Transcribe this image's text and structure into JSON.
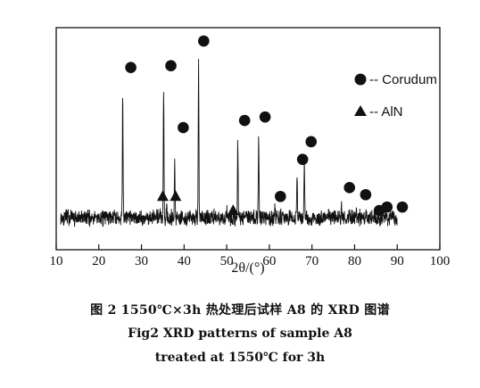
{
  "chart_data": {
    "type": "line",
    "title": "",
    "xlabel": "2θ/(°)",
    "ylabel": "",
    "xlim": [
      10,
      100
    ],
    "x_ticks": [
      10,
      20,
      30,
      40,
      50,
      60,
      70,
      80,
      90,
      100
    ],
    "y_ticks_visible": false,
    "grid": false,
    "legend_position": "right-upper",
    "legend": [
      {
        "name": "Corudum",
        "marker": "circle"
      },
      {
        "name": "AlN",
        "marker": "triangle"
      }
    ],
    "baseline_range": [
      11,
      90
    ],
    "peaks": [
      {
        "x": 25.6,
        "intensity": 0.72,
        "phase": "Corudum"
      },
      {
        "x": 35.2,
        "intensity": 0.73,
        "phase": "Corudum"
      },
      {
        "x": 37.8,
        "intensity": 0.35,
        "phase": "Corudum"
      },
      {
        "x": 43.4,
        "intensity": 0.89,
        "phase": "Corudum"
      },
      {
        "x": 52.6,
        "intensity": 0.42,
        "phase": "Corudum"
      },
      {
        "x": 57.5,
        "intensity": 0.45,
        "phase": "Corudum"
      },
      {
        "x": 61.3,
        "intensity": 0.06,
        "phase": "Corudum"
      },
      {
        "x": 66.5,
        "intensity": 0.25,
        "phase": "Corudum"
      },
      {
        "x": 68.2,
        "intensity": 0.32,
        "phase": "Corudum"
      },
      {
        "x": 76.9,
        "intensity": 0.08,
        "phase": "Corudum"
      },
      {
        "x": 80.4,
        "intensity": 0.05,
        "phase": "Corudum"
      },
      {
        "x": 35.9,
        "intensity": 0.09,
        "phase": "AlN"
      },
      {
        "x": 50.1,
        "intensity": 0.03,
        "phase": "AlN"
      }
    ],
    "corundum_markers": [
      {
        "x": 27.5,
        "y": 0.85
      },
      {
        "x": 36.9,
        "y": 0.86
      },
      {
        "x": 39.8,
        "y": 0.51
      },
      {
        "x": 44.6,
        "y": 1.0
      },
      {
        "x": 54.2,
        "y": 0.55
      },
      {
        "x": 59.0,
        "y": 0.57
      },
      {
        "x": 62.6,
        "y": 0.12
      },
      {
        "x": 67.8,
        "y": 0.33
      },
      {
        "x": 69.8,
        "y": 0.43
      },
      {
        "x": 78.8,
        "y": 0.17
      },
      {
        "x": 82.6,
        "y": 0.13
      },
      {
        "x": 85.8,
        "y": 0.04
      },
      {
        "x": 87.6,
        "y": 0.06
      },
      {
        "x": 91.2,
        "y": 0.06
      }
    ],
    "aln_markers": [
      {
        "x": 35.0,
        "y": 0.12
      },
      {
        "x": 38.0,
        "y": 0.12
      },
      {
        "x": 51.5,
        "y": 0.04
      }
    ]
  },
  "captions": {
    "cn": "图 2   1550℃×3h 热处理后试样 A8 的 XRD 图谱",
    "en_line1": "Fig2   XRD patterns of sample A8",
    "en_line2": "treated at 1550℃  for 3h"
  }
}
